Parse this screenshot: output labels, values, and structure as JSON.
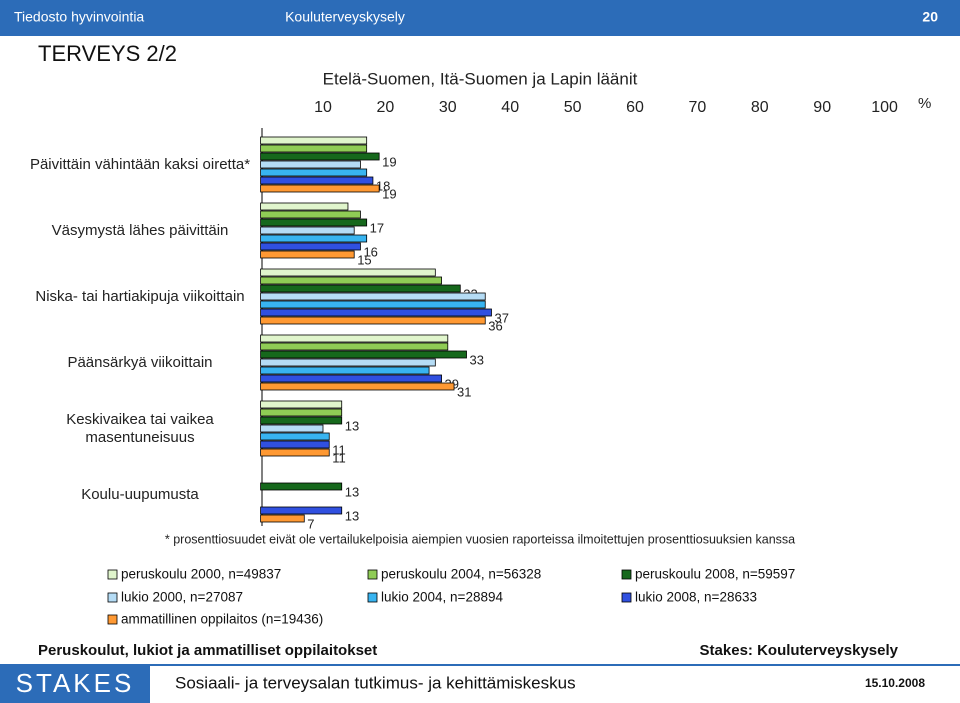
{
  "header": {
    "left": "Tiedosto hyvinvointia",
    "center": "Kouluterveyskysely",
    "page": "20"
  },
  "title": "TERVEYS 2/2",
  "chart_data": {
    "type": "bar",
    "orientation": "horizontal",
    "title": "Etelä-Suomen, Itä-Suomen ja Lapin läänit",
    "x_unit": "%",
    "categories": [
      "Päivittäin vähintään kaksi oiretta*",
      "Väsymystä lähes päivittäin",
      "Niska- tai hartiakipuja viikoittain",
      "Päänsärkyä viikoittain",
      "Keskivaikea tai vaikea masentuneisuus",
      "Koulu-uupumusta"
    ],
    "series": [
      {
        "name": "peruskoulu 2000, n=49837",
        "color": "#e0f5cc",
        "show_labels": false,
        "values": [
          17,
          14,
          28,
          30,
          13,
          null
        ]
      },
      {
        "name": "peruskoulu 2004, n=56328",
        "color": "#8fcc55",
        "show_labels": false,
        "values": [
          17,
          16,
          29,
          30,
          13,
          null
        ]
      },
      {
        "name": "peruskoulu 2008, n=59597",
        "color": "#16681c",
        "show_labels": true,
        "values": [
          19,
          17,
          32,
          33,
          13,
          13
        ]
      },
      {
        "name": "lukio 2000, n=27087",
        "color": "#b5dcf5",
        "show_labels": false,
        "values": [
          16,
          15,
          36,
          28,
          10,
          null
        ]
      },
      {
        "name": "lukio 2004, n=28894",
        "color": "#38b4f0",
        "show_labels": false,
        "values": [
          17,
          17,
          36,
          27,
          11,
          null
        ]
      },
      {
        "name": "lukio 2008, n=28633",
        "color": "#3050e0",
        "show_labels": true,
        "values": [
          18,
          16,
          37,
          29,
          11,
          13
        ]
      },
      {
        "name": "ammatillinen oppilaitos (n=19436)",
        "color": "#ff9933",
        "show_labels": true,
        "values": [
          19,
          15,
          36,
          31,
          11,
          7
        ]
      }
    ],
    "xlim": [
      0,
      100
    ],
    "xticks": [
      10,
      20,
      30,
      40,
      50,
      60,
      70,
      80,
      90,
      100
    ],
    "footnote": "* prosenttiosuudet eivät ole vertailukelpoisia aiempien vuosien raporteissa ilmoitettujen prosenttiosuuksien kanssa"
  },
  "footer": {
    "subtitle": "Peruskoulut, lukiot ja ammatilliset oppilaitokset",
    "source": "Stakes: Kouluterveyskysely",
    "logo": "STAKES",
    "organization": "Sosiaali- ja terveysalan tutkimus- ja kehittämiskeskus",
    "date": "15.10.2008"
  }
}
